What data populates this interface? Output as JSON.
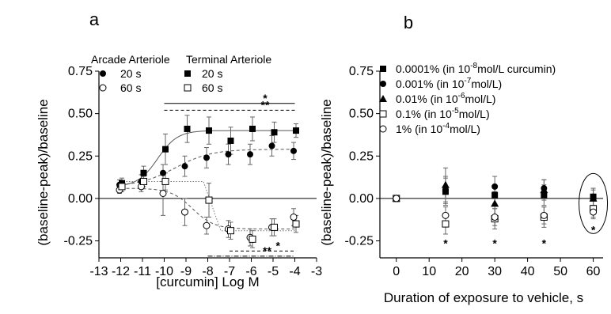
{
  "chart_data": [
    {
      "panel_label": "a",
      "type": "scatter",
      "xlabel": "[curcumin] Log M",
      "ylabel": "(baseline-peak)/baseline",
      "xlim": [
        -13,
        -3
      ],
      "ylim": [
        -0.35,
        0.75
      ],
      "x_ticks": [
        -13,
        -12,
        -11,
        -10,
        -9,
        -8,
        -7,
        -6,
        -5,
        -4,
        -3
      ],
      "x_tick_labels": [
        "-13",
        "-12",
        "-11",
        "-10",
        "-9",
        "-8",
        "-7",
        "-6",
        "-5",
        "-4",
        "-3"
      ],
      "y_ticks": [
        -0.25,
        0,
        0.25,
        0.5,
        0.75
      ],
      "y_tick_labels": [
        "-0.25",
        "0.00",
        "0.25",
        "0.50",
        "0.75"
      ],
      "legend_groups": [
        {
          "title": "Arcade Arteriole",
          "entries": [
            "20 s",
            "60 s"
          ]
        },
        {
          "title": "Terminal Arteriole",
          "entries": [
            "20 s",
            "60 s"
          ]
        }
      ],
      "series": [
        {
          "group": "Arcade Arteriole",
          "name": "20 s",
          "marker": "filled-circle",
          "fit": "dashed",
          "x": [
            -12,
            -11,
            -10,
            -9,
            -8,
            -7,
            -6,
            -5,
            -4
          ],
          "y": [
            0.08,
            0.1,
            0.15,
            0.19,
            0.24,
            0.26,
            0.26,
            0.31,
            0.28
          ],
          "err": [
            0.03,
            0.04,
            0.05,
            0.06,
            0.06,
            0.06,
            0.06,
            0.06,
            0.05
          ]
        },
        {
          "group": "Terminal Arteriole",
          "name": "20 s",
          "marker": "filled-square",
          "fit": "solid",
          "x": [
            -12,
            -11,
            -10,
            -9,
            -8,
            -7,
            -6,
            -5,
            -4
          ],
          "y": [
            0.09,
            0.15,
            0.29,
            0.41,
            0.4,
            0.34,
            0.41,
            0.39,
            0.4
          ],
          "err": [
            0.03,
            0.04,
            0.09,
            0.08,
            0.08,
            0.08,
            0.07,
            0.06,
            0.04
          ]
        },
        {
          "group": "Arcade Arteriole",
          "name": "60 s",
          "marker": "open-circle",
          "fit": "dashed",
          "x": [
            -12,
            -11,
            -10,
            -9,
            -8,
            -7,
            -6,
            -5,
            -4
          ],
          "y": [
            0.05,
            0.07,
            0.03,
            -0.08,
            -0.16,
            -0.18,
            -0.23,
            -0.17,
            -0.11
          ],
          "err": [
            0.02,
            0.03,
            0.13,
            0.08,
            0.05,
            0.05,
            0.05,
            0.05,
            0.05
          ]
        },
        {
          "group": "Terminal Arteriole",
          "name": "60 s",
          "marker": "open-square",
          "fit": "dotted",
          "x": [
            -12,
            -11,
            -10,
            -8,
            -7,
            -6,
            -5,
            -4
          ],
          "y": [
            0.07,
            0.1,
            0.1,
            -0.01,
            -0.19,
            -0.24,
            -0.17,
            -0.15
          ],
          "err": [
            0.03,
            0.03,
            0.05,
            0.1,
            0.05,
            0.05,
            0.05,
            0.05
          ]
        }
      ],
      "annotations": [
        {
          "text": "*",
          "y": 0.56,
          "x_range": [
            -10,
            -4
          ],
          "style": "solid"
        },
        {
          "text": "**",
          "y": 0.52,
          "x_range": [
            -10,
            -4
          ],
          "style": "dashed"
        },
        {
          "text": "*",
          "y": -0.31,
          "x_range": [
            -7,
            -4
          ],
          "style": "dashed"
        },
        {
          "text": "**",
          "y": -0.34,
          "x_range": [
            -8,
            -4
          ],
          "style": "dash-dot"
        }
      ]
    },
    {
      "panel_label": "b",
      "type": "scatter",
      "xlabel": "Duration of exposure to vehicle, s",
      "ylabel": "(baseline-peak)/baseline",
      "xlim": [
        -5,
        63
      ],
      "ylim": [
        -0.35,
        0.75
      ],
      "x_ticks": [
        0,
        10,
        20,
        30,
        40,
        50,
        60
      ],
      "x_tick_labels": [
        "0",
        "10",
        "20",
        "30",
        "40",
        "50",
        "60"
      ],
      "y_ticks": [
        -0.25,
        0,
        0.25,
        0.5,
        0.75
      ],
      "y_tick_labels": [
        "-0.25",
        "0.00",
        "0.25",
        "0.50",
        "0.75"
      ],
      "series": [
        {
          "legend_pre": "0.0001% (in 10",
          "legend_sup": "-8",
          "legend_post": "mol/L curcumin)",
          "marker": "filled-square",
          "x": [
            0,
            15,
            30,
            45,
            60
          ],
          "y": [
            0,
            0.04,
            0.02,
            0.02,
            0.01
          ],
          "err": [
            0.01,
            0.08,
            0.05,
            0.06,
            0.05
          ]
        },
        {
          "legend_pre": "0.001% (in 10",
          "legend_sup": "-7",
          "legend_post": "mol/L)",
          "marker": "filled-circle",
          "x": [
            0,
            15,
            30,
            45,
            60
          ],
          "y": [
            0,
            0.05,
            0.07,
            0.06,
            0.01
          ],
          "err": [
            0.01,
            0.08,
            0.06,
            0.05,
            0.05
          ]
        },
        {
          "legend_pre": "0.01% (in 10",
          "legend_sup": "-6",
          "legend_post": "mol/L)",
          "marker": "filled-triangle",
          "x": [
            0,
            15,
            30,
            45,
            60
          ],
          "y": [
            0,
            0.08,
            -0.03,
            0.05,
            0
          ],
          "err": [
            0.01,
            0.1,
            0.07,
            0.06,
            0.05
          ]
        },
        {
          "legend_pre": "0.1% (in 10",
          "legend_sup": "-5",
          "legend_post": "mol/L)",
          "marker": "open-square",
          "x": [
            0,
            15,
            30,
            45,
            60
          ],
          "y": [
            0,
            -0.15,
            -0.12,
            -0.11,
            -0.06
          ],
          "err": [
            0.01,
            0.06,
            0.06,
            0.06,
            0.05
          ]
        },
        {
          "legend_pre": "1% (in 10",
          "legend_sup": "-4",
          "legend_post": "mol/L)",
          "marker": "open-circle",
          "x": [
            0,
            15,
            30,
            45,
            60
          ],
          "y": [
            0,
            -0.1,
            -0.11,
            -0.1,
            -0.08
          ],
          "err": [
            0.01,
            0.05,
            0.05,
            0.05,
            0.04
          ]
        }
      ],
      "annotations": [
        {
          "text": "*",
          "x": 15,
          "y": -0.26
        },
        {
          "text": "*",
          "x": 30,
          "y": -0.26
        },
        {
          "text": "*",
          "x": 45,
          "y": -0.26
        },
        {
          "text": "*",
          "x": 60,
          "y": -0.18
        }
      ],
      "highlight": {
        "shape": "ellipse",
        "x": 60,
        "y": -0.03
      }
    }
  ]
}
